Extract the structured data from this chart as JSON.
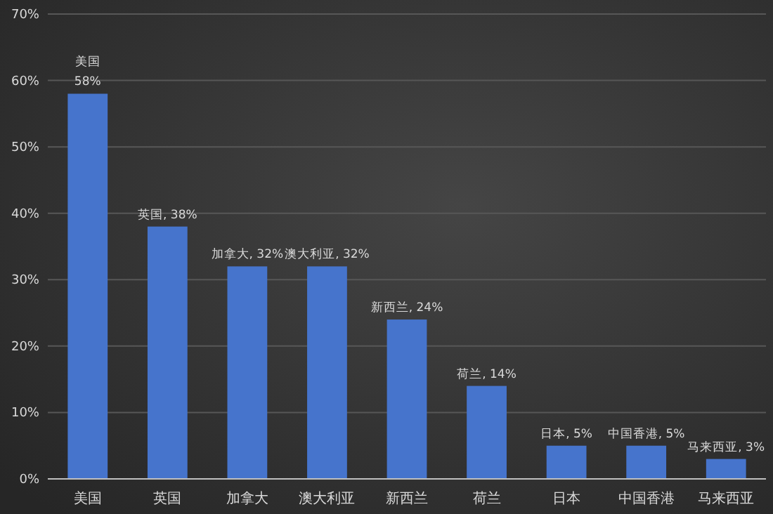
{
  "chart_data": {
    "type": "bar",
    "categories": [
      "美国",
      "英国",
      "加拿大",
      "澳大利亚",
      "新西兰",
      "荷兰",
      "日本",
      "中国香港",
      "马来西亚"
    ],
    "values": [
      58,
      38,
      32,
      32,
      24,
      14,
      5,
      5,
      3
    ],
    "value_labels": [
      "美国 58%",
      "英国, 38%",
      "加拿大, 32%",
      "澳大利亚, 32%",
      "新西兰, 24%",
      "荷兰, 14%",
      "日本, 5%",
      "中国香港, 5%",
      "马来西亚, 3%"
    ],
    "color": "#4674cc",
    "ylim": [
      0,
      70
    ],
    "yticks": [
      {
        "value": 0,
        "label": "0%"
      },
      {
        "value": 10,
        "label": "10%"
      },
      {
        "value": 20,
        "label": "20%"
      },
      {
        "value": 30,
        "label": "30%"
      },
      {
        "value": 40,
        "label": "40%"
      },
      {
        "value": 50,
        "label": "50%"
      },
      {
        "value": 60,
        "label": "60%"
      },
      {
        "value": 70,
        "label": "70%"
      }
    ],
    "grid": "y"
  }
}
